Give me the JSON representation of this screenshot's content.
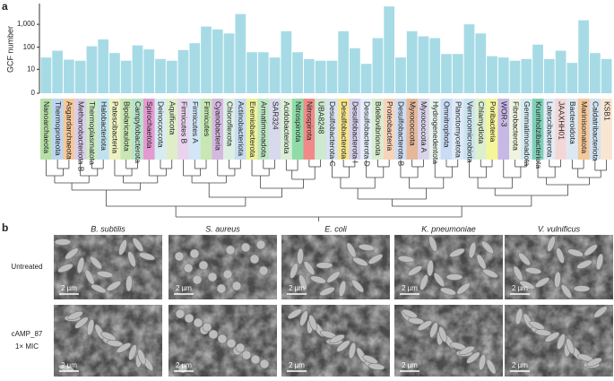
{
  "chart_data": {
    "type": "bar",
    "panel": "a",
    "ylabel": "GCF number",
    "categories": [
      "Nanoarchaeota",
      "Thermoproteota",
      "Asgardarchaeota",
      "Methanobacteriota B",
      "Thermoplasmatota",
      "Halobacteriota",
      "Patescibacteria",
      "Bipolaricaulota",
      "Campylobacterota",
      "Spirochaetota",
      "Deinococcota",
      "Aquificota",
      "Firmicutes B",
      "Firmicutes A",
      "Firmicutes",
      "Cyanobacteria",
      "Chloroflexota",
      "Actinobacteriota",
      "Eremiobacterota",
      "Armatimonadota",
      "SAR324",
      "Acidobacteriota",
      "Nitrospinota",
      "Nitrospirota",
      "UBA8248",
      "Desulfobacterota C",
      "Desulfobacterota",
      "Desulfobacterota I",
      "Desulfobacterota D",
      "Bdellovibrionota",
      "Proteobacteria",
      "Desulfobacterota B",
      "Myxococcota",
      "Myxococcota A",
      "Hydrogenedentota",
      "Omnitrophota",
      "Planctomycetota",
      "Verrucomicrobiota",
      "Chlamydiota",
      "Poribacteria",
      "WOR-3",
      "Fibrobacterota",
      "Gemmatimonadota",
      "Krumholzibacteriota",
      "Latescibacterota",
      "JAAXHH01",
      "Bacteroidota",
      "Marinisomatota",
      "Caldatribacteriota",
      "KSB1"
    ],
    "values": [
      35,
      70,
      28,
      25,
      110,
      220,
      55,
      25,
      120,
      80,
      30,
      25,
      75,
      150,
      800,
      600,
      400,
      2800,
      60,
      60,
      35,
      500,
      60,
      30,
      25,
      25,
      500,
      90,
      18,
      250,
      6000,
      35,
      500,
      300,
      250,
      50,
      50,
      1000,
      400,
      40,
      35,
      25,
      30,
      130,
      30,
      70,
      20,
      1500,
      55,
      30
    ],
    "color": "#a6dbe6",
    "label_colors": [
      "#b7e0a8",
      "#bcd6f0",
      "#f5c89a",
      "#d9cdea",
      "#cde8c3",
      "#bfe2ee",
      "#eef2c2",
      "#c9e7b5",
      "#b8e3c9",
      "#e39ad0",
      "#d7ecf2",
      "#dfeec8",
      "#e8d4ee",
      "#d2e6f5",
      "#c7e8b4",
      "#d4b8e0",
      "#dcefe3",
      "#c7dcf0",
      "#eef39a",
      "#bfe6c4",
      "#d9d9ee",
      "#dbeed6",
      "#8fdca8",
      "#f08a8a",
      "#cde9d0",
      "#d7e3f2",
      "#f6e58d",
      "#d6d0ec",
      "#e6eef7",
      "#d9ecd0",
      "#f7d3ba",
      "#cddcf2",
      "#e5b89a",
      "#d9d4ea",
      "#e8f3ee",
      "#c9dcf5",
      "#dde9f7",
      "#cbe3f0",
      "#dcefcf",
      "#f5f59a",
      "#c8b8e6",
      "#eef4e0",
      "#d6eaf2",
      "#7fcfb6",
      "#e0ecf7",
      "#f3d7d7",
      "#dde8f5",
      "#f5c89a",
      "#d3e3f2",
      "#f8e6d2"
    ],
    "scale": "log1p",
    "ylim": [
      0,
      8000
    ],
    "yticks": [
      0,
      10,
      100,
      {
        "value": 1000,
        "label": "1,000"
      }
    ]
  },
  "panel_b": {
    "panel": "b",
    "columns": [
      "B. subtilis",
      "S. aureus",
      "E. coli",
      "K. pneumoniae",
      "V. vulnificus"
    ],
    "rows": [
      [
        "Untreated"
      ],
      [
        "cAMP_87",
        "1× MIC"
      ]
    ],
    "scale_bar": "2 µm"
  }
}
